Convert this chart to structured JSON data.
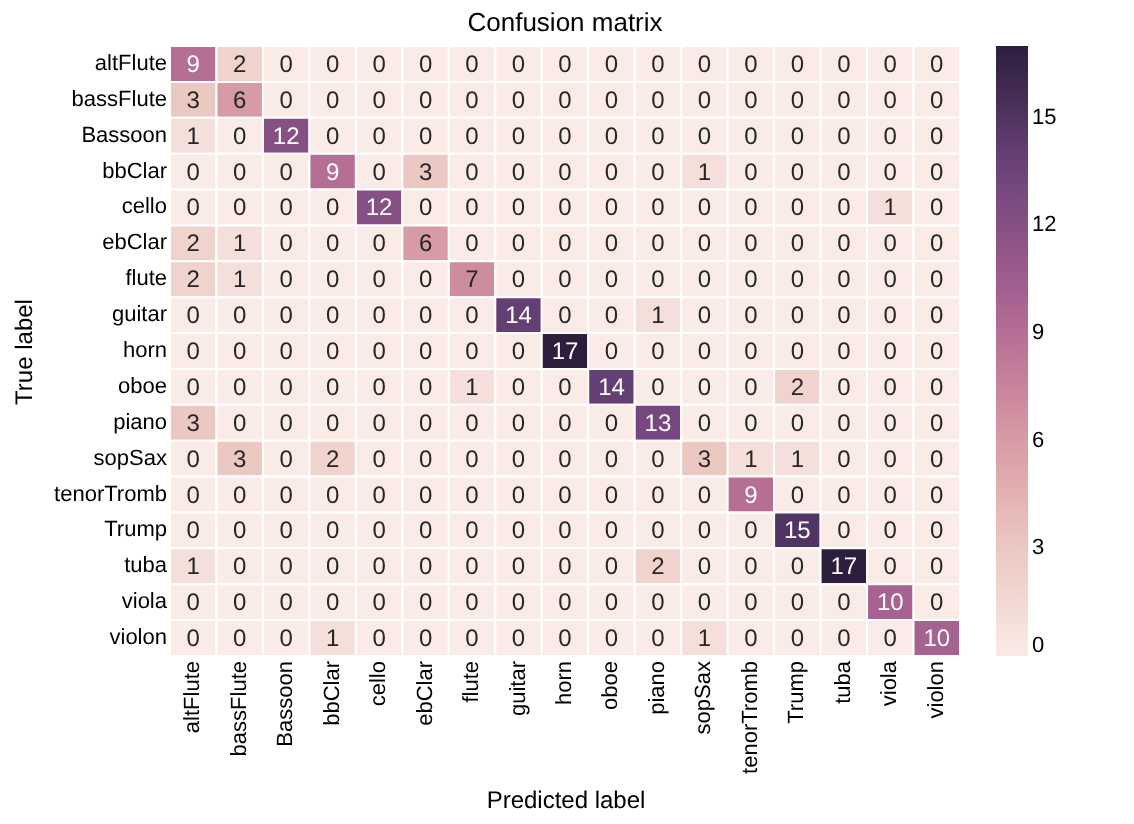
{
  "chart_data": {
    "type": "heatmap",
    "title": "Confusion matrix",
    "xlabel": "Predicted label",
    "ylabel": "True label",
    "categories": [
      "altFlute",
      "bassFlute",
      "Bassoon",
      "bbClar",
      "cello",
      "ebClar",
      "flute",
      "guitar",
      "horn",
      "oboe",
      "piano",
      "sopSax",
      "tenorTromb",
      "Trump",
      "tuba",
      "viola",
      "violon"
    ],
    "y_categories": [
      "altFlute",
      "bassFlute",
      "Bassoon",
      "bbClar",
      "cello",
      "ebClar",
      "flute",
      "guitar",
      "horn",
      "oboe",
      "piano",
      "sopSax",
      "tenorTromb",
      "Trump",
      "tuba",
      "viola",
      "violon"
    ],
    "cells": [
      [
        9,
        2,
        0,
        0,
        0,
        0,
        0,
        0,
        0,
        0,
        0,
        0,
        0,
        0,
        0,
        0,
        0
      ],
      [
        3,
        6,
        0,
        0,
        0,
        0,
        0,
        0,
        0,
        0,
        0,
        0,
        0,
        0,
        0,
        0,
        0
      ],
      [
        1,
        0,
        12,
        0,
        0,
        0,
        0,
        0,
        0,
        0,
        0,
        0,
        0,
        0,
        0,
        0,
        0
      ],
      [
        0,
        0,
        0,
        9,
        0,
        3,
        0,
        0,
        0,
        0,
        0,
        1,
        0,
        0,
        0,
        0,
        0
      ],
      [
        0,
        0,
        0,
        0,
        12,
        0,
        0,
        0,
        0,
        0,
        0,
        0,
        0,
        0,
        0,
        1,
        0
      ],
      [
        2,
        1,
        0,
        0,
        0,
        6,
        0,
        0,
        0,
        0,
        0,
        0,
        0,
        0,
        0,
        0,
        0
      ],
      [
        2,
        1,
        0,
        0,
        0,
        0,
        7,
        0,
        0,
        0,
        0,
        0,
        0,
        0,
        0,
        0,
        0
      ],
      [
        0,
        0,
        0,
        0,
        0,
        0,
        0,
        14,
        0,
        0,
        1,
        0,
        0,
        0,
        0,
        0,
        0
      ],
      [
        0,
        0,
        0,
        0,
        0,
        0,
        0,
        0,
        17,
        0,
        0,
        0,
        0,
        0,
        0,
        0,
        0
      ],
      [
        0,
        0,
        0,
        0,
        0,
        0,
        1,
        0,
        0,
        14,
        0,
        0,
        0,
        2,
        0,
        0,
        0
      ],
      [
        3,
        0,
        0,
        0,
        0,
        0,
        0,
        0,
        0,
        0,
        13,
        0,
        0,
        0,
        0,
        0,
        0
      ],
      [
        0,
        3,
        0,
        2,
        0,
        0,
        0,
        0,
        0,
        0,
        0,
        3,
        1,
        1,
        0,
        0,
        0
      ],
      [
        0,
        0,
        0,
        0,
        0,
        0,
        0,
        0,
        0,
        0,
        0,
        0,
        9,
        0,
        0,
        0,
        0
      ],
      [
        0,
        0,
        0,
        0,
        0,
        0,
        0,
        0,
        0,
        0,
        0,
        0,
        0,
        15,
        0,
        0,
        0
      ],
      [
        1,
        0,
        0,
        0,
        0,
        0,
        0,
        0,
        0,
        0,
        2,
        0,
        0,
        0,
        17,
        0,
        0
      ],
      [
        0,
        0,
        0,
        0,
        0,
        0,
        0,
        0,
        0,
        0,
        0,
        0,
        0,
        0,
        0,
        10,
        0
      ],
      [
        0,
        0,
        0,
        1,
        0,
        0,
        0,
        0,
        0,
        0,
        0,
        1,
        0,
        0,
        0,
        0,
        10
      ]
    ],
    "clim": [
      0,
      17
    ],
    "cticks": [
      0,
      3,
      6,
      9,
      12,
      15
    ],
    "data_labels": true
  }
}
